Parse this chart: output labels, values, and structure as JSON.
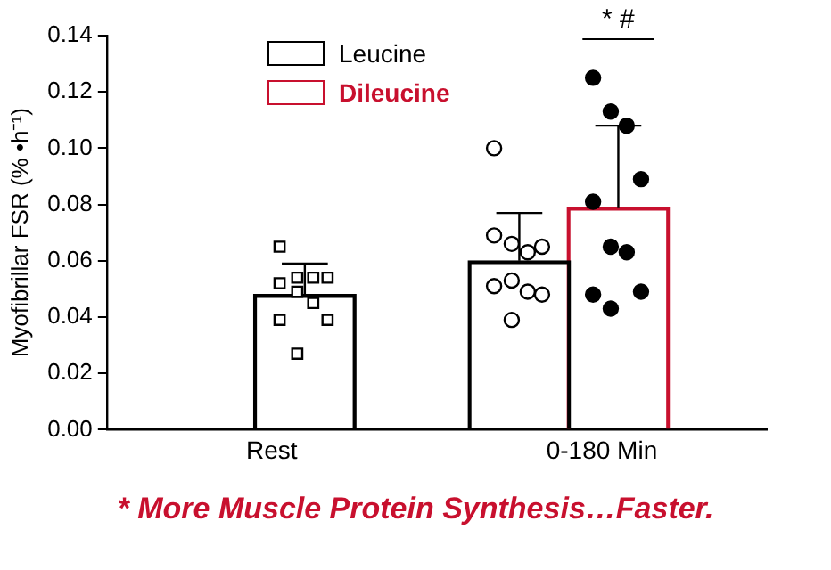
{
  "chart_data": {
    "type": "bar",
    "ylabel": "Myofibrillar FSR (% •h⁻¹)",
    "categories": [
      "Rest",
      "0-180 Min"
    ],
    "series": [
      {
        "name": "Leucine",
        "color": "#000000",
        "values": [
          0.048,
          0.06
        ],
        "errors": [
          [
            0.048,
            0.059
          ],
          [
            0.06,
            0.077
          ]
        ]
      },
      {
        "name": "Dileucine",
        "color": "#c8102e",
        "values": [
          null,
          0.079
        ],
        "errors": [
          null,
          [
            0.079,
            0.108
          ]
        ]
      },
      {
        "type": "scatter",
        "marker": "square",
        "color": "#ffffff",
        "x": [
          "Rest",
          "Rest",
          "Rest",
          "Rest",
          "Rest",
          "Rest",
          "Rest",
          "Rest",
          "Rest",
          "Rest"
        ],
        "values": [
          0.065,
          0.054,
          0.054,
          0.054,
          0.052,
          0.049,
          0.045,
          0.039,
          0.039,
          0.027
        ]
      },
      {
        "type": "scatter",
        "marker": "circle",
        "color": "#ffffff",
        "x": [
          "0-180 Min",
          "0-180 Min",
          "0-180 Min",
          "0-180 Min",
          "0-180 Min",
          "0-180 Min",
          "0-180 Min",
          "0-180 Min",
          "0-180 Min",
          "0-180 Min"
        ],
        "values": [
          0.1,
          0.066,
          0.063,
          0.065,
          0.069,
          0.053,
          0.049,
          0.048,
          0.051,
          0.039
        ]
      },
      {
        "type": "scatter",
        "marker": "circle",
        "color": "#000000",
        "x": [
          "0-180 Min",
          "0-180 Min",
          "0-180 Min",
          "0-180 Min",
          "0-180 Min",
          "0-180 Min",
          "0-180 Min",
          "0-180 Min",
          "0-180 Min",
          "0-180 Min"
        ],
        "values": [
          0.125,
          0.113,
          0.108,
          0.089,
          0.081,
          0.065,
          0.063,
          0.049,
          0.048,
          0.043
        ]
      }
    ],
    "ylim": [
      0,
      0.14
    ],
    "yticks": [
      {
        "value": 0,
        "label": "0.00"
      },
      {
        "value": 0.02,
        "label": "0.02"
      },
      {
        "value": 0.04,
        "label": "0.04"
      },
      {
        "value": 0.06,
        "label": "0.06"
      },
      {
        "value": 0.08,
        "label": "0.08"
      },
      {
        "value": 0.1,
        "label": "0.10"
      },
      {
        "value": 0.12,
        "label": "0.12"
      },
      {
        "value": 0.14,
        "label": "0.14"
      }
    ],
    "grid": false,
    "legend": "top",
    "annotations": [
      "* #",
      "* More Muscle Protein Synthesis…Faster."
    ]
  }
}
